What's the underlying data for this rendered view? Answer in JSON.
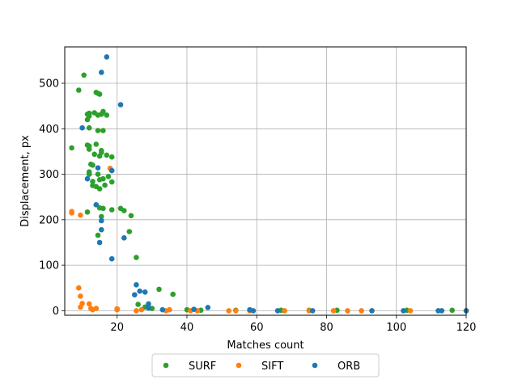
{
  "chart_data": {
    "type": "scatter",
    "title": "",
    "xlabel": "Matches count",
    "ylabel": "Displacement, px",
    "xlim": [
      5,
      120
    ],
    "ylim": [
      -10,
      580
    ],
    "xticks": [
      20,
      40,
      60,
      80,
      100,
      120
    ],
    "yticks": [
      0,
      100,
      200,
      300,
      400,
      500
    ],
    "grid": true,
    "legend_position": "bottom-center",
    "series": [
      {
        "name": "SURF",
        "color": "#2ca02c",
        "points": [
          [
            7,
            358
          ],
          [
            9,
            485
          ],
          [
            10.5,
            518
          ],
          [
            11.5,
            432
          ],
          [
            11.5,
            420
          ],
          [
            12,
            428
          ],
          [
            12,
            434
          ],
          [
            12,
            402
          ],
          [
            11.5,
            364
          ],
          [
            12,
            362
          ],
          [
            12,
            355
          ],
          [
            12,
            305
          ],
          [
            12,
            300
          ],
          [
            12.5,
            322
          ],
          [
            13,
            320
          ],
          [
            13,
            284
          ],
          [
            13,
            275
          ],
          [
            13.5,
            344
          ],
          [
            14,
            366
          ],
          [
            13.5,
            435
          ],
          [
            14,
            480
          ],
          [
            14.5,
            478
          ],
          [
            15,
            476
          ],
          [
            14.5,
            430
          ],
          [
            15.5,
            432
          ],
          [
            16,
            438
          ],
          [
            17,
            430
          ],
          [
            14.5,
            396
          ],
          [
            16,
            396
          ],
          [
            14.5,
            300
          ],
          [
            15,
            288
          ],
          [
            15,
            268
          ],
          [
            14,
            273
          ],
          [
            15,
            340
          ],
          [
            15.5,
            348
          ],
          [
            15.5,
            352
          ],
          [
            17,
            342
          ],
          [
            16,
            290
          ],
          [
            16.5,
            276
          ],
          [
            17.5,
            295
          ],
          [
            18.5,
            283
          ],
          [
            16,
            225
          ],
          [
            15,
            226
          ],
          [
            11.5,
            217
          ],
          [
            15.5,
            207
          ],
          [
            18.5,
            222
          ],
          [
            18.5,
            338
          ],
          [
            21,
            225
          ],
          [
            22,
            220
          ],
          [
            24,
            209
          ],
          [
            23.5,
            174
          ],
          [
            14.5,
            166
          ],
          [
            25.5,
            117
          ],
          [
            26,
            14
          ],
          [
            28,
            8
          ],
          [
            30,
            5
          ],
          [
            32,
            47
          ],
          [
            36,
            36
          ],
          [
            40,
            2
          ],
          [
            44,
            1
          ],
          [
            54,
            1
          ],
          [
            67,
            1
          ],
          [
            75,
            1
          ],
          [
            83,
            1
          ],
          [
            103,
            1
          ],
          [
            116,
            1
          ]
        ]
      },
      {
        "name": "SIFT",
        "color": "#ff7f0e",
        "points": [
          [
            7,
            215
          ],
          [
            7,
            218
          ],
          [
            9.5,
            210
          ],
          [
            18,
            313
          ],
          [
            9,
            50
          ],
          [
            9.5,
            32
          ],
          [
            10,
            16
          ],
          [
            9.5,
            8
          ],
          [
            12,
            15
          ],
          [
            12.5,
            5
          ],
          [
            13,
            2
          ],
          [
            14,
            5
          ],
          [
            20,
            4
          ],
          [
            20,
            2
          ],
          [
            25.5,
            0
          ],
          [
            27,
            2
          ],
          [
            34,
            0
          ],
          [
            35,
            2
          ],
          [
            41,
            0
          ],
          [
            43,
            0
          ],
          [
            52,
            0
          ],
          [
            54,
            0
          ],
          [
            58,
            0
          ],
          [
            68,
            0
          ],
          [
            75,
            0
          ],
          [
            82,
            0
          ],
          [
            86,
            0
          ],
          [
            90,
            0
          ],
          [
            93,
            0
          ],
          [
            104,
            0
          ],
          [
            120,
            0
          ]
        ]
      },
      {
        "name": "ORB",
        "color": "#1f77b4",
        "points": [
          [
            17,
            558
          ],
          [
            15.5,
            524
          ],
          [
            21,
            453
          ],
          [
            10,
            402
          ],
          [
            18.5,
            308
          ],
          [
            14.5,
            314
          ],
          [
            11.5,
            290
          ],
          [
            14,
            233
          ],
          [
            15.5,
            178
          ],
          [
            15.5,
            198
          ],
          [
            15,
            150
          ],
          [
            22,
            160
          ],
          [
            18.5,
            114
          ],
          [
            25.5,
            57
          ],
          [
            26.5,
            43
          ],
          [
            28,
            41
          ],
          [
            25,
            35
          ],
          [
            29,
            15
          ],
          [
            29,
            6
          ],
          [
            33,
            2
          ],
          [
            42,
            3
          ],
          [
            46,
            7
          ],
          [
            58,
            2
          ],
          [
            59,
            0
          ],
          [
            66,
            0
          ],
          [
            76,
            0
          ],
          [
            93,
            0
          ],
          [
            102,
            0
          ],
          [
            112,
            0
          ],
          [
            113,
            0
          ],
          [
            120,
            0
          ]
        ]
      }
    ]
  }
}
